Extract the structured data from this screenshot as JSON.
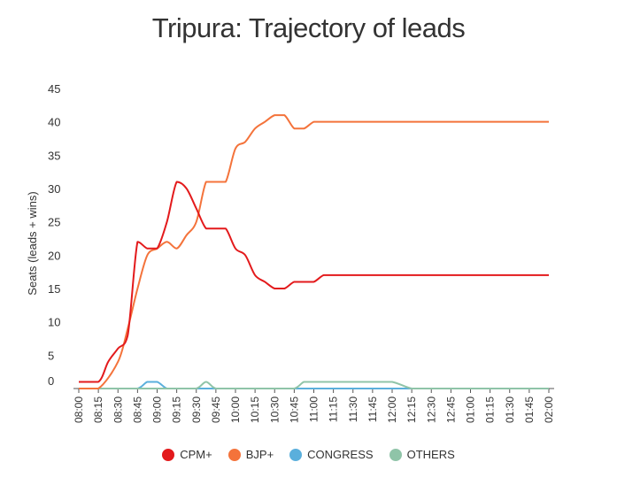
{
  "chart_data": {
    "type": "line",
    "title": "Tripura: Trajectory of leads",
    "ylabel": "Seats (leads + wins)",
    "xlabel": "",
    "ylim": [
      0,
      45
    ],
    "yticks": [
      0,
      5,
      10,
      15,
      20,
      25,
      30,
      35,
      40,
      45
    ],
    "categories": [
      "08:00",
      "08:15",
      "08:30",
      "08:45",
      "09:00",
      "09:15",
      "09:30",
      "09:45",
      "10:00",
      "10:15",
      "10:30",
      "10:45",
      "11:00",
      "11:15",
      "11:30",
      "11:45",
      "12:00",
      "12:15",
      "12:30",
      "12:45",
      "01:00",
      "01:15",
      "01:30",
      "01:45",
      "02:00"
    ],
    "legend_position": "bottom",
    "grid": false,
    "series": [
      {
        "name": "CPM+",
        "color": "#e31a1c",
        "x": [
          0,
          1,
          1.5,
          2,
          2.5,
          3,
          3.5,
          4,
          4.5,
          5,
          5.5,
          6,
          6.5,
          7,
          7.5,
          8,
          8.5,
          9,
          9.5,
          10,
          10.5,
          11,
          11.5,
          12,
          12.5,
          13,
          13.5,
          14,
          14.5,
          15,
          15.5,
          16,
          16.5,
          17,
          17.5,
          18,
          18.5,
          19,
          19.5,
          20,
          20.5,
          21,
          22,
          23,
          24
        ],
        "values": [
          1,
          1,
          4,
          6,
          8,
          22,
          21,
          21,
          25,
          31,
          30,
          27,
          24,
          24,
          24,
          21,
          20,
          17,
          16,
          15,
          15,
          16,
          16,
          16,
          17,
          17,
          17,
          17,
          17,
          17,
          17,
          17,
          17,
          17,
          17,
          17,
          17,
          17,
          17,
          17,
          17,
          17,
          17,
          17,
          17
        ]
      },
      {
        "name": "BJP+",
        "color": "#f4733b",
        "x": [
          0,
          1,
          2,
          2.5,
          3,
          3.5,
          4,
          4.5,
          5,
          5.5,
          6,
          6.5,
          7,
          7.5,
          8,
          8.5,
          9,
          9.5,
          10,
          10.5,
          11,
          11.5,
          12,
          12.5,
          13,
          13.5,
          14,
          14.5,
          15,
          15.5,
          16,
          16.5,
          17,
          17.5,
          18,
          18.5,
          19,
          19.5,
          20,
          21,
          22,
          23,
          24
        ],
        "values": [
          0,
          0,
          4,
          9,
          15,
          20,
          21,
          22,
          21,
          23,
          25,
          31,
          31,
          31,
          36,
          37,
          39,
          40,
          41,
          41,
          39,
          39,
          40,
          40,
          40,
          40,
          40,
          40,
          40,
          40,
          40,
          40,
          40,
          40,
          40,
          40,
          40,
          40,
          40,
          40,
          40,
          40,
          40
        ]
      },
      {
        "name": "CONGRESS",
        "color": "#5aafdc",
        "x": [
          0,
          1,
          2,
          3,
          3.5,
          4,
          4.5,
          5,
          6,
          7,
          8,
          9,
          10,
          11,
          12,
          13,
          14,
          15,
          16,
          17,
          18,
          19,
          20,
          21,
          22,
          23,
          24
        ],
        "values": [
          0,
          0,
          0,
          0,
          1,
          1,
          0,
          0,
          0,
          0,
          0,
          0,
          0,
          0,
          0,
          0,
          0,
          0,
          0,
          0,
          0,
          0,
          0,
          0,
          0,
          0,
          0
        ]
      },
      {
        "name": "OTHERS",
        "color": "#8fc4a8",
        "x": [
          0,
          1,
          2,
          3,
          4,
          5,
          6,
          6.5,
          7,
          8,
          9,
          10,
          11,
          11.5,
          12,
          13,
          14,
          15,
          16,
          17,
          18,
          19,
          20,
          21,
          22,
          23,
          24
        ],
        "values": [
          0,
          0,
          0,
          0,
          0,
          0,
          0,
          1,
          0,
          0,
          0,
          0,
          0,
          1,
          1,
          1,
          1,
          1,
          1,
          0,
          0,
          0,
          0,
          0,
          0,
          0,
          0
        ]
      }
    ]
  }
}
